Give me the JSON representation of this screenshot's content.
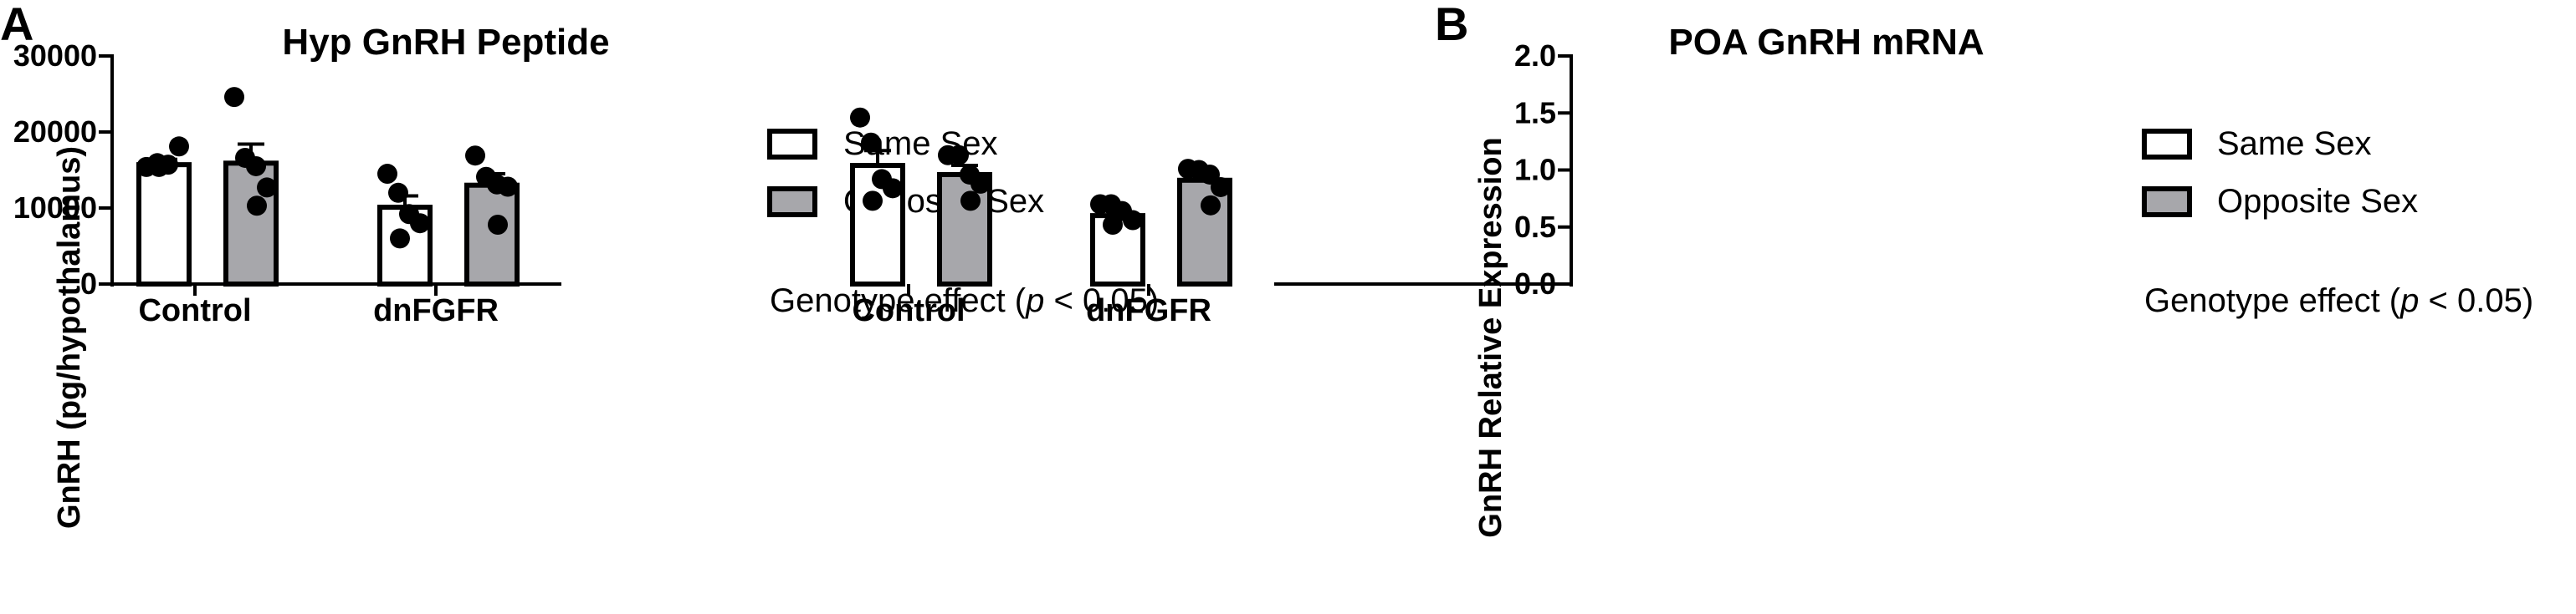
{
  "chart_data": [
    {
      "type": "bar",
      "panel_label": "A",
      "title": "Hyp GnRH Peptide",
      "xlabel": "",
      "ylabel": "GnRH (pg/hypothalamus)",
      "ylim": [
        0,
        30000
      ],
      "yticks": [
        0,
        10000,
        20000,
        30000
      ],
      "categories": [
        "Control",
        "dnFGFR"
      ],
      "series": [
        {
          "name": "Same Sex",
          "color": "#ffffff",
          "values": [
            15700,
            10100
          ],
          "sem": [
            700,
            1500
          ],
          "points": [
            [
              15400,
              15900,
              15700,
              18100,
              15400
            ],
            [
              14500,
              12000,
              9200,
              8000,
              6000
            ]
          ]
        },
        {
          "name": "Opposite Sex",
          "color": "#a7a7ab",
          "values": [
            15900,
            13000
          ],
          "sem": [
            2500,
            1500
          ],
          "points": [
            [
              24600,
              16600,
              15500,
              12700,
              10300
            ],
            [
              16900,
              14100,
              13100,
              12800,
              7800
            ]
          ]
        }
      ],
      "legend": {
        "position": "right",
        "items": [
          "Same Sex",
          "Opposite Sex"
        ]
      },
      "annotation": {
        "prefix": "Genotype effect (",
        "italic": "p",
        "suffix": " < 0.05)"
      }
    },
    {
      "type": "bar",
      "panel_label": "B",
      "title": "POA GnRH mRNA",
      "xlabel": "",
      "ylabel": "GnRH Relative Expression",
      "ylim": [
        0,
        2.0
      ],
      "yticks": [
        "0.0",
        "0.5",
        "1.0",
        "1.5",
        "2.0"
      ],
      "categories": [
        "Control",
        "dnFGFR"
      ],
      "series": [
        {
          "name": "Same Sex",
          "color": "#ffffff",
          "values": [
            1.04,
            0.6
          ],
          "sem": [
            0.13,
            0.05
          ],
          "points": [
            [
              1.46,
              1.24,
              0.92,
              0.84,
              0.73
            ],
            [
              0.7,
              0.7,
              0.64,
              0.56,
              0.52
            ]
          ]
        },
        {
          "name": "Opposite Sex",
          "color": "#a7a7ab",
          "values": [
            0.96,
            0.91
          ],
          "sem": [
            0.08,
            0.05
          ],
          "points": [
            [
              1.13,
              1.13,
              0.96,
              0.88,
              0.73
            ],
            [
              1.01,
              1.0,
              0.96,
              0.85,
              0.69
            ]
          ]
        }
      ],
      "legend": {
        "position": "right",
        "items": [
          "Same Sex",
          "Opposite Sex"
        ]
      },
      "annotation": {
        "prefix": "Genotype effect (",
        "italic": "p",
        "suffix": " < 0.05)"
      }
    }
  ]
}
